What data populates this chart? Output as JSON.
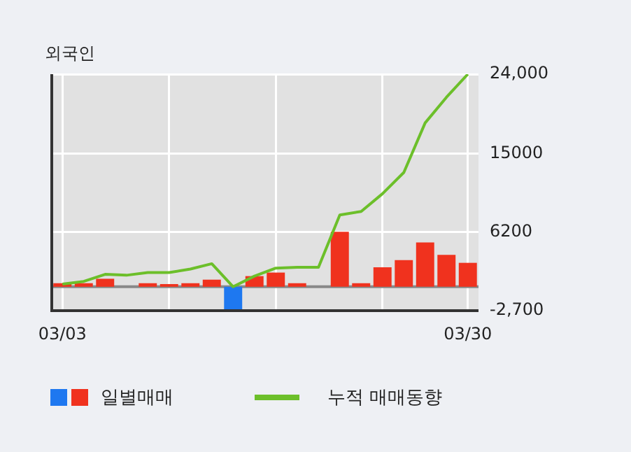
{
  "chart_data": {
    "type": "bar",
    "title": "외국인",
    "categories": [
      "03/03",
      null,
      null,
      null,
      null,
      null,
      null,
      null,
      null,
      null,
      null,
      null,
      null,
      null,
      null,
      null,
      null,
      null,
      null,
      "03/30"
    ],
    "series": [
      {
        "name": "일별매매",
        "colors": [
          "#f0321e",
          "#f0321e",
          "#f0321e",
          "#f0321e",
          "#f0321e",
          "#f0321e",
          "#f0321e",
          "#f0321e",
          "#1e78f0",
          "#f0321e",
          "#f0321e",
          "#f0321e",
          "#f0321e",
          "#f0321e",
          "#f0321e",
          "#f0321e",
          "#f0321e",
          "#f0321e",
          "#f0321e",
          "#f0321e"
        ],
        "values": [
          400,
          400,
          900,
          0,
          400,
          300,
          400,
          800,
          -2600,
          1200,
          1600,
          400,
          0,
          6200,
          400,
          2200,
          3000,
          5000,
          3600,
          2700
        ]
      },
      {
        "name": "누적 매매동향",
        "type": "line",
        "color": "#6cbf2a",
        "values": [
          300,
          600,
          1400,
          1300,
          1600,
          1600,
          2000,
          2600,
          0,
          1200,
          2100,
          2200,
          2200,
          8100,
          8500,
          10500,
          12900,
          18500,
          21400,
          24000
        ]
      }
    ],
    "ylim": [
      -2700,
      24000
    ],
    "yticks": [
      {
        "value": 24000,
        "label": "24,000"
      },
      15000,
      6200,
      {
        "value": -2700,
        "label": "-2,700"
      }
    ],
    "ref_lines": [
      {
        "axis": "y",
        "value": 0,
        "color": "#888888"
      }
    ],
    "grid": true,
    "legend": "bottom",
    "marker": "none"
  }
}
